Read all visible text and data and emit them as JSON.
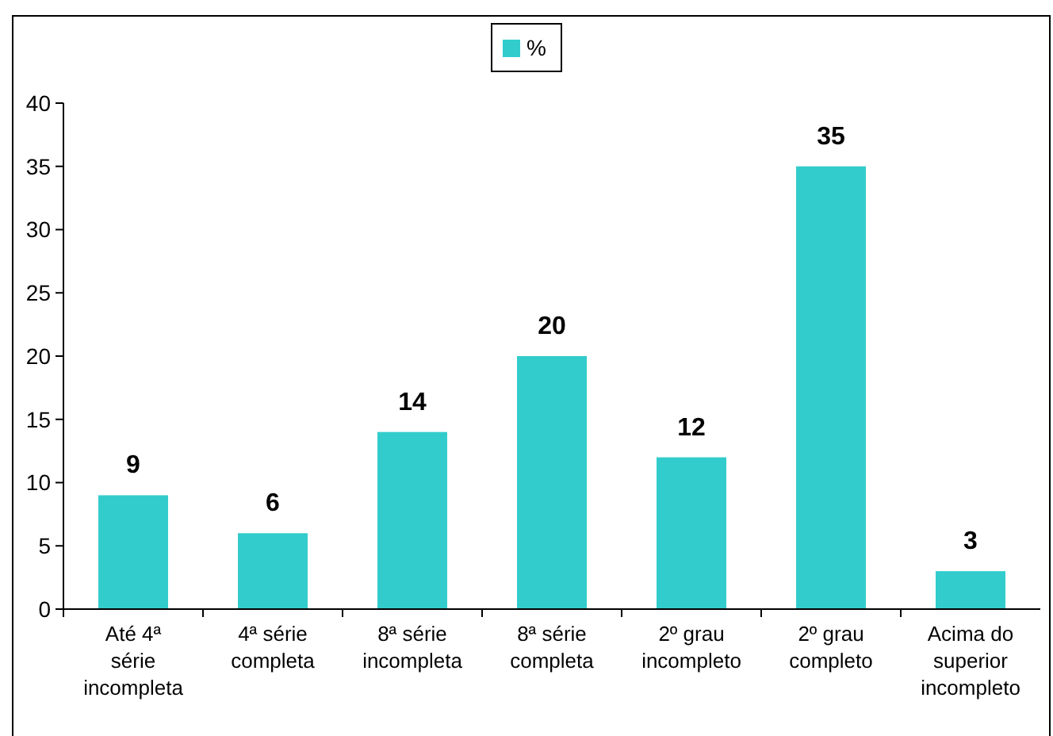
{
  "chart_data": {
    "type": "bar",
    "categories": [
      "Até 4ª série incompleta",
      "4ª série completa",
      "8ª série incompleta",
      "8ª série completa",
      "2º grau incompleto",
      "2º grau completo",
      "Acima do superior incompleto"
    ],
    "series": [
      {
        "name": "%",
        "color": "#33cccc",
        "values": [
          9,
          6,
          14,
          20,
          12,
          35,
          3
        ]
      }
    ],
    "ylim": [
      0,
      40
    ],
    "yticks": [
      0,
      5,
      10,
      15,
      20,
      25,
      30,
      35,
      40
    ],
    "data_labels": true,
    "legend": "top",
    "grid": false
  }
}
